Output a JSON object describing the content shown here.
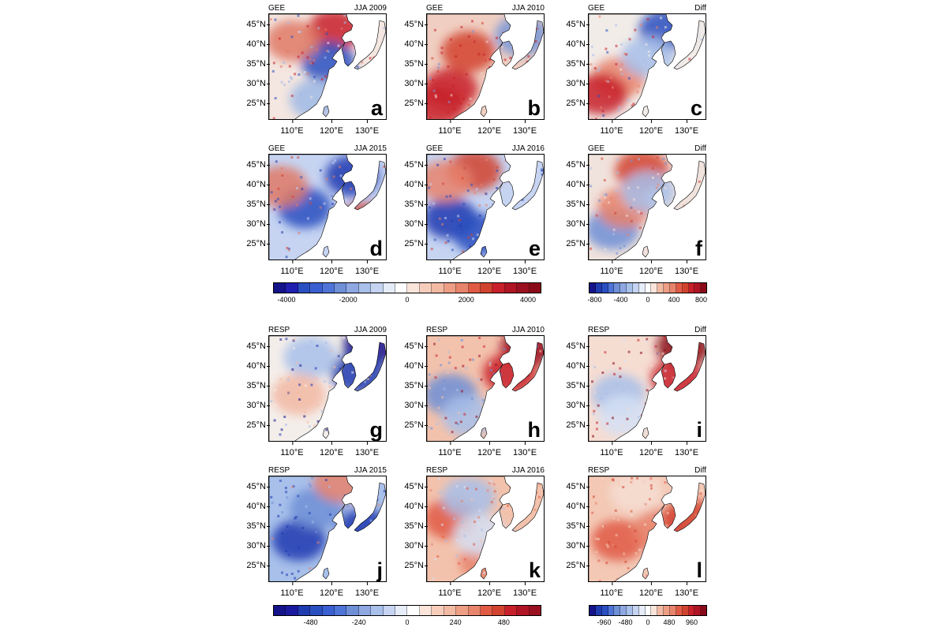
{
  "y_ticks": [
    "45°N",
    "40°N",
    "35°N",
    "30°N",
    "25°N"
  ],
  "x_ticks": [
    "110°E",
    "120°E",
    "130°E"
  ],
  "panels": [
    {
      "var": "GEE",
      "label": "JJA 2009",
      "letter": "a",
      "base": "#f4e6e0",
      "blobs": [
        [
          "#c8202a",
          0.55,
          0.15
        ],
        [
          "#2a4fc0",
          0.5,
          0.45
        ],
        [
          "#e07a66",
          0.2,
          0.25
        ],
        [
          "#9fb8e6",
          0.4,
          0.8
        ]
      ]
    },
    {
      "var": "GEE",
      "label": "JJA 2010",
      "letter": "b",
      "base": "#f0cfc2",
      "blobs": [
        [
          "#c8202a",
          0.2,
          0.7
        ],
        [
          "#d2432f",
          0.35,
          0.35
        ],
        [
          "#7896d8",
          0.8,
          0.2
        ],
        [
          "#c8202a",
          0.1,
          0.85
        ]
      ]
    },
    {
      "var": "GEE",
      "label": "Diff",
      "letter": "c",
      "base": "#f2ece8",
      "blobs": [
        [
          "#2a4fc0",
          0.65,
          0.15
        ],
        [
          "#e8836c",
          0.25,
          0.6
        ],
        [
          "#c8202a",
          0.1,
          0.75
        ],
        [
          "#a8c0ea",
          0.5,
          0.4
        ]
      ]
    },
    {
      "var": "GEE",
      "label": "JJA 2015",
      "letter": "d",
      "base": "#c6d4f2",
      "blobs": [
        [
          "#2a4fc0",
          0.3,
          0.5
        ],
        [
          "#1f3bb0",
          0.7,
          0.2
        ],
        [
          "#e07a66",
          0.1,
          0.3
        ],
        [
          "#d2432f",
          0.8,
          0.65
        ]
      ]
    },
    {
      "var": "GEE",
      "label": "JJA 2016",
      "letter": "e",
      "base": "#c6d4f2",
      "blobs": [
        [
          "#1f3bb0",
          0.2,
          0.6
        ],
        [
          "#d2432f",
          0.4,
          0.15
        ],
        [
          "#2a4fc0",
          0.45,
          0.75
        ],
        [
          "#e8836c",
          0.15,
          0.25
        ]
      ]
    },
    {
      "var": "GEE",
      "label": "Diff",
      "letter": "f",
      "base": "#f0e2dc",
      "blobs": [
        [
          "#d2432f",
          0.45,
          0.15
        ],
        [
          "#6f8fd6",
          0.2,
          0.7
        ],
        [
          "#e8836c",
          0.3,
          0.5
        ],
        [
          "#a8c0ea",
          0.5,
          0.35
        ]
      ]
    },
    {
      "var": "RESP",
      "label": "JJA 2009",
      "letter": "g",
      "base": "#f4eeea",
      "blobs": [
        [
          "#14138a",
          0.85,
          0.1
        ],
        [
          "#1f3bb0",
          0.75,
          0.35
        ],
        [
          "#a8c0ea",
          0.35,
          0.2
        ],
        [
          "#f2b9a3",
          0.25,
          0.55
        ]
      ]
    },
    {
      "var": "RESP",
      "label": "JJA 2010",
      "letter": "h",
      "base": "#f3c2ac",
      "blobs": [
        [
          "#9a1020",
          0.85,
          0.1
        ],
        [
          "#c8202a",
          0.7,
          0.35
        ],
        [
          "#6f8fd6",
          0.2,
          0.55
        ],
        [
          "#a8c0ea",
          0.35,
          0.75
        ]
      ]
    },
    {
      "var": "RESP",
      "label": "Diff",
      "letter": "i",
      "base": "#f6ddd2",
      "blobs": [
        [
          "#8a0a1a",
          0.8,
          0.1
        ],
        [
          "#c8202a",
          0.75,
          0.4
        ],
        [
          "#a8c0ea",
          0.25,
          0.55
        ],
        [
          "#d5e0f4",
          0.3,
          0.75
        ]
      ]
    },
    {
      "var": "RESP",
      "label": "JJA 2015",
      "letter": "j",
      "base": "#a8c0ea",
      "blobs": [
        [
          "#1f3bb0",
          0.25,
          0.6
        ],
        [
          "#6f8fd6",
          0.4,
          0.3
        ],
        [
          "#e8836c",
          0.6,
          0.05
        ],
        [
          "#1f3bb0",
          0.8,
          0.5
        ]
      ]
    },
    {
      "var": "RESP",
      "label": "JJA 2016",
      "letter": "k",
      "base": "#f3c2ac",
      "blobs": [
        [
          "#e05a44",
          0.2,
          0.4
        ],
        [
          "#a8c0ea",
          0.35,
          0.2
        ],
        [
          "#e8836c",
          0.5,
          0.8
        ],
        [
          "#d5e0f4",
          0.45,
          0.55
        ]
      ]
    },
    {
      "var": "RESP",
      "label": "Diff",
      "letter": "l",
      "base": "#f3c8b5",
      "blobs": [
        [
          "#e05a44",
          0.25,
          0.6
        ],
        [
          "#f6ddd2",
          0.4,
          0.15
        ],
        [
          "#e8836c",
          0.6,
          0.5
        ],
        [
          "#d2432f",
          0.85,
          0.4
        ]
      ]
    }
  ],
  "colorbars": [
    {
      "id": "gee-main",
      "labels": [
        "-4000",
        "-2000",
        "0",
        "2000",
        "4000"
      ],
      "positions": [
        0.05,
        0.28,
        0.5,
        0.72,
        0.95
      ],
      "colors": [
        "#14138a",
        "#1f1fb0",
        "#2a4fc0",
        "#3a5fd0",
        "#4f74d8",
        "#6f8fd6",
        "#8fa8e2",
        "#a8c0ea",
        "#c6d4f2",
        "#e6ecf8",
        "#ffffff",
        "#fbe4da",
        "#f6cdbb",
        "#f2b9a3",
        "#ed9e85",
        "#e8836c",
        "#e05a44",
        "#d2432f",
        "#c8202a",
        "#b01526",
        "#9a1020",
        "#8a0a1a"
      ]
    },
    {
      "id": "gee-diff",
      "labels": [
        "-800",
        "-400",
        "0",
        "400",
        "800"
      ],
      "positions": [
        0.05,
        0.27,
        0.5,
        0.72,
        0.95
      ],
      "colors": [
        "#14138a",
        "#1f3bb0",
        "#2a4fc0",
        "#4f74d8",
        "#6f8fd6",
        "#8fa8e2",
        "#a8c0ea",
        "#c6d4f2",
        "#e6ecf8",
        "#ffffff",
        "#fbe4da",
        "#f2b9a3",
        "#ed9e85",
        "#e8836c",
        "#e05a44",
        "#d2432f",
        "#c8202a",
        "#b01526",
        "#8a0a1a"
      ]
    },
    {
      "id": "resp-main",
      "labels": [
        "-480",
        "-240",
        "0",
        "240",
        "480"
      ],
      "positions": [
        0.14,
        0.32,
        0.5,
        0.68,
        0.86
      ],
      "colors": [
        "#14138a",
        "#1a1aa0",
        "#1f3bb0",
        "#2a4fc0",
        "#3a5fd0",
        "#4f74d8",
        "#6f8fd6",
        "#8fa8e2",
        "#a8c0ea",
        "#c6d4f2",
        "#e6ecf8",
        "#ffffff",
        "#fbe4da",
        "#f6cdbb",
        "#f2b9a3",
        "#ed9e85",
        "#e8836c",
        "#e05a44",
        "#d2432f",
        "#c8202a",
        "#b01526",
        "#9a1020"
      ]
    },
    {
      "id": "resp-diff",
      "labels": [
        "-960",
        "-480",
        "0",
        "480",
        "960"
      ],
      "positions": [
        0.13,
        0.31,
        0.5,
        0.68,
        0.87
      ],
      "colors": [
        "#14138a",
        "#1f3bb0",
        "#2a4fc0",
        "#4f74d8",
        "#6f8fd6",
        "#8fa8e2",
        "#a8c0ea",
        "#c6d4f2",
        "#e6ecf8",
        "#ffffff",
        "#fbe4da",
        "#f2b9a3",
        "#ed9e85",
        "#e8836c",
        "#e05a44",
        "#d2432f",
        "#c8202a",
        "#b01526",
        "#8a0a1a"
      ]
    }
  ]
}
